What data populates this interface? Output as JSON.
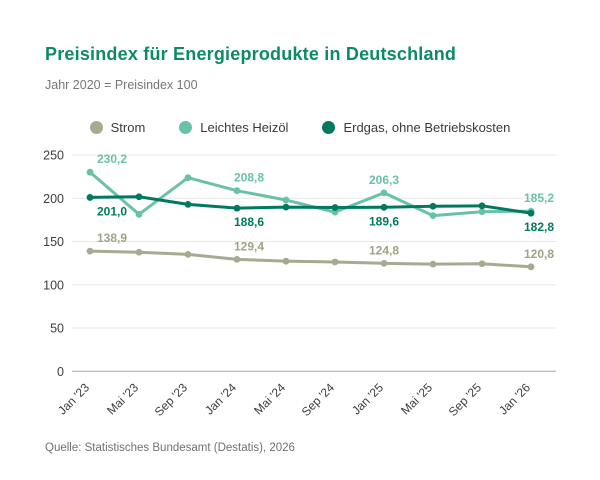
{
  "header": {
    "title": "Preisindex für Energieprodukte in Deutschland",
    "subtitle": "Jahr 2020 = Preisindex 100"
  },
  "footer": {
    "source": "Quelle: Statistisches Bundesamt (Destatis), 2026"
  },
  "colors": {
    "title": "#0d8a67",
    "grid": "#e8e8e8",
    "zero_line": "#bfbfbf",
    "tick_label": "#3d3d3d"
  },
  "chart_data": {
    "type": "line",
    "title": "Preisindex für Energieprodukte in Deutschland",
    "subtitle": "Jahr 2020 = Preisindex 100",
    "categories": [
      "Jan '23",
      "Mai '23",
      "Sep '23",
      "Jan '24",
      "Mai '24",
      "Sep '24",
      "Jan '25",
      "Mai '25",
      "Sep '25",
      "Jan '26"
    ],
    "ylim": [
      0,
      250
    ],
    "yticks": [
      250,
      200,
      150,
      100,
      50,
      0
    ],
    "grid": true,
    "legend_position": "top",
    "number_format": "decimal-comma",
    "series": [
      {
        "name": "Strom",
        "color": "#a6aa90",
        "label_color": "#9fa388",
        "values": [
          138.9,
          137.6,
          135.2,
          129.4,
          127.3,
          126.4,
          124.8,
          123.9,
          124.3,
          120.8
        ],
        "labeled_points": [
          0,
          3,
          6,
          9
        ],
        "label_side": "above"
      },
      {
        "name": "Leichtes Heizöl",
        "color": "#69c1a9",
        "label_color": "#69c1a9",
        "values": [
          230.2,
          181.5,
          223.8,
          208.8,
          198.0,
          184.0,
          206.3,
          180.0,
          184.5,
          185.2
        ],
        "labeled_points": [
          0,
          3,
          6,
          9
        ],
        "label_side": "above"
      },
      {
        "name": "Erdgas, ohne Betriebskosten",
        "color": "#00795f",
        "label_color": "#00795f",
        "values": [
          201.0,
          201.8,
          193.0,
          188.6,
          189.8,
          189.3,
          189.6,
          190.8,
          191.3,
          182.8
        ],
        "labeled_points": [
          0,
          3,
          6,
          9
        ],
        "label_side": "below"
      }
    ]
  }
}
